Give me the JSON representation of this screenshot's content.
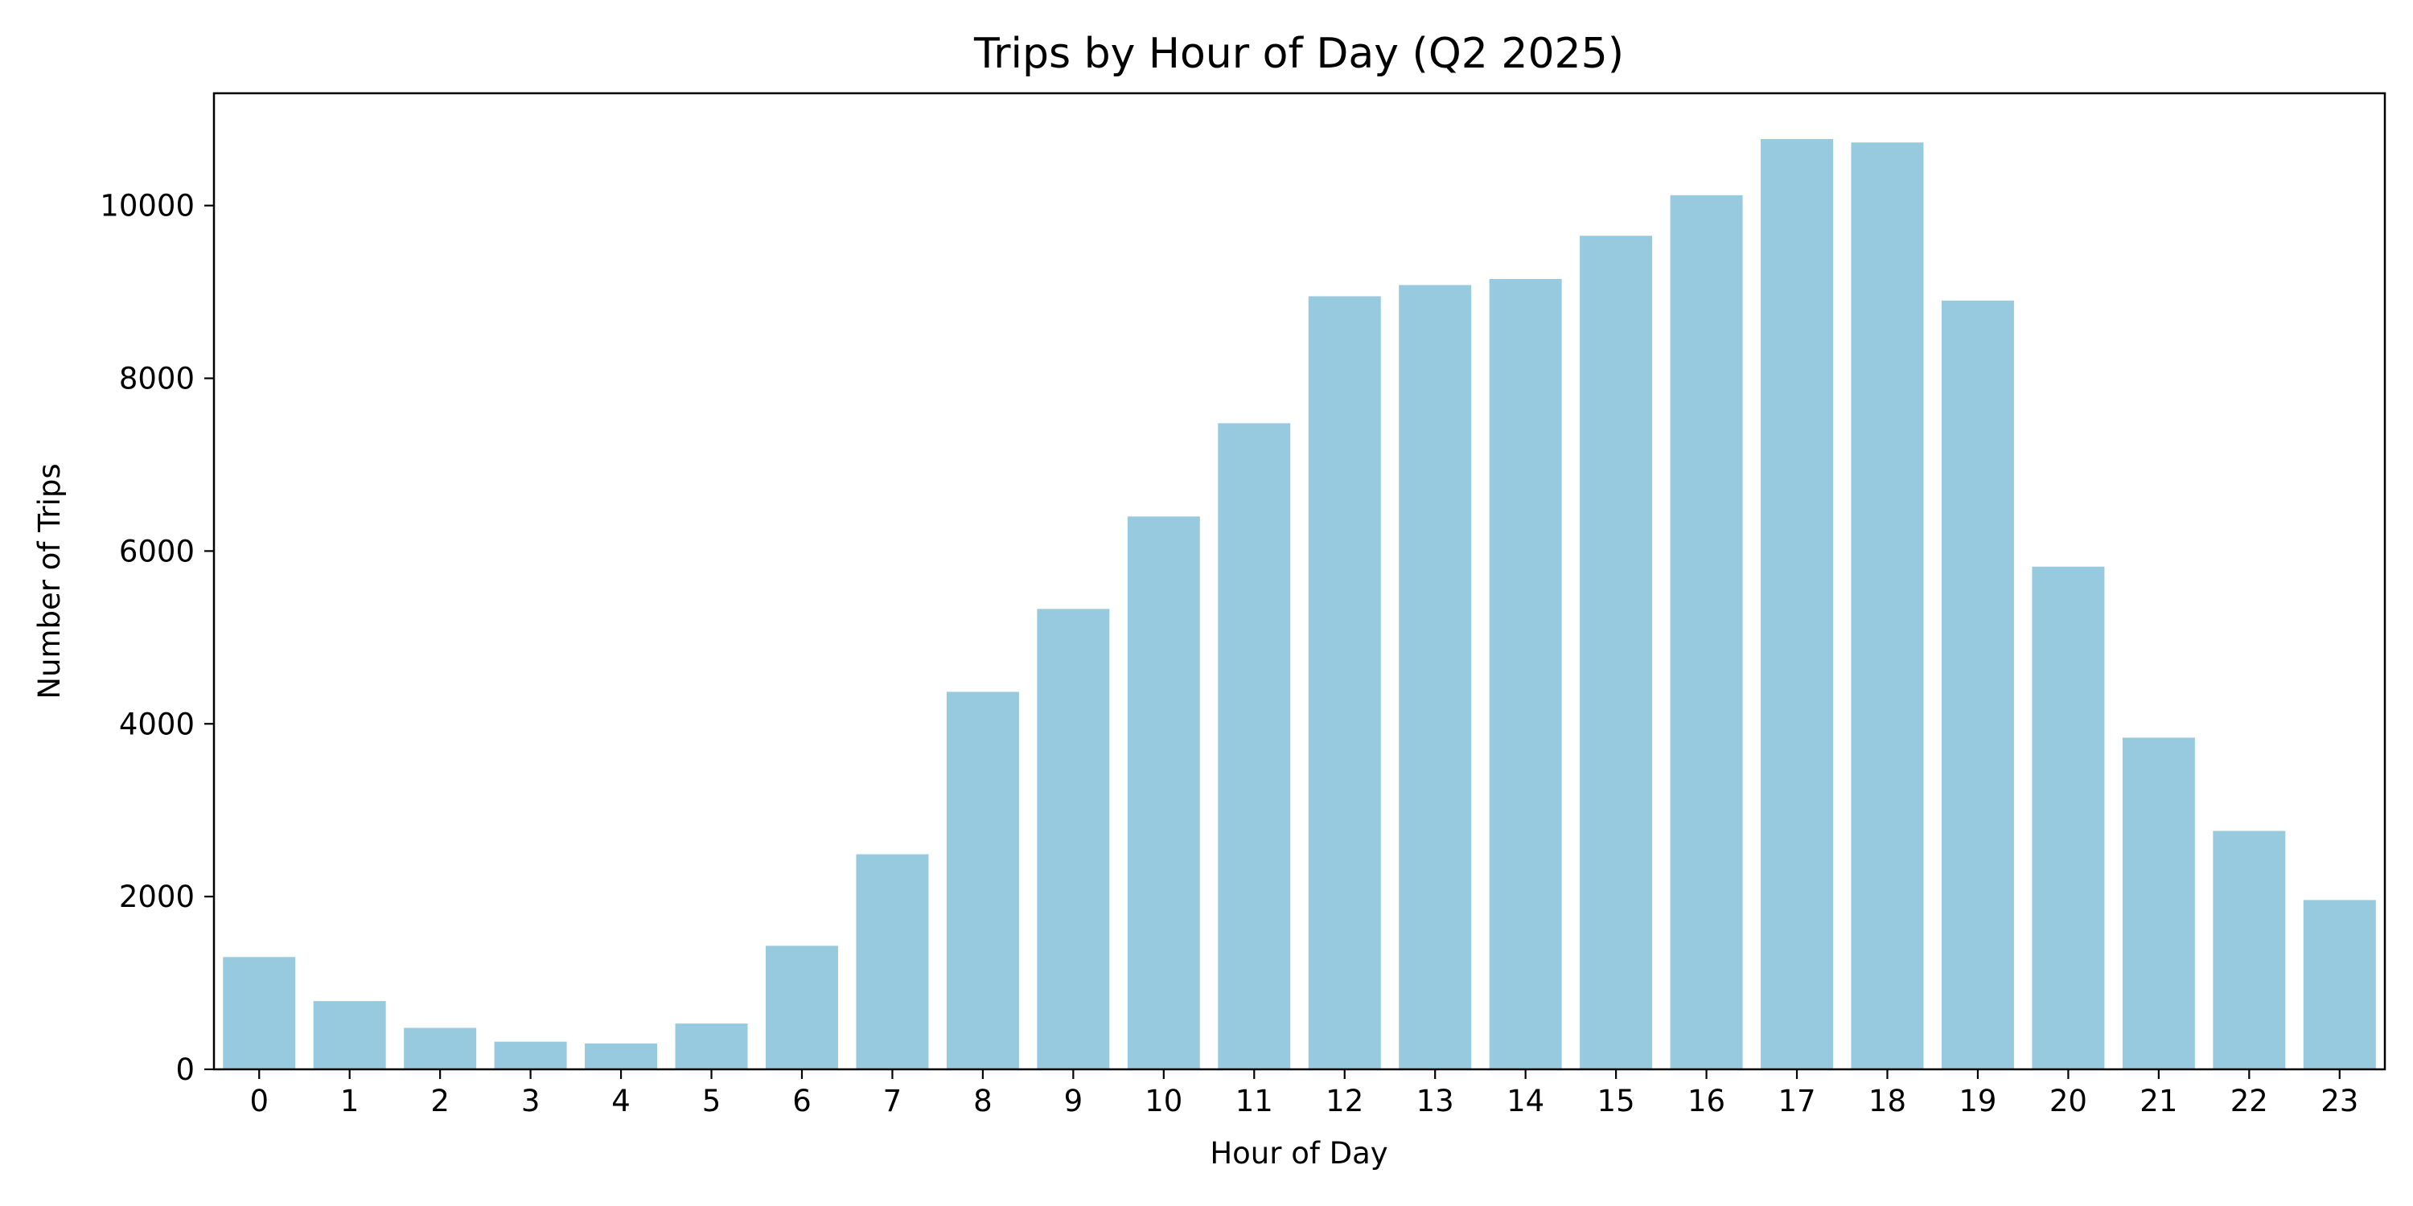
{
  "chart_data": {
    "type": "bar",
    "title": "Trips by Hour of Day (Q2 2025)",
    "xlabel": "Hour of Day",
    "ylabel": "Number of Trips",
    "categories": [
      "0",
      "1",
      "2",
      "3",
      "4",
      "5",
      "6",
      "7",
      "8",
      "9",
      "10",
      "11",
      "12",
      "13",
      "14",
      "15",
      "16",
      "17",
      "18",
      "19",
      "20",
      "21",
      "22",
      "23"
    ],
    "values": [
      1300,
      790,
      480,
      320,
      300,
      530,
      1430,
      2490,
      4370,
      5330,
      6400,
      7480,
      8950,
      9080,
      9150,
      9650,
      10120,
      10770,
      10730,
      8900,
      5820,
      3840,
      2760,
      1960
    ],
    "ylim": [
      0,
      11300
    ],
    "yticks": [
      0,
      2000,
      4000,
      6000,
      8000,
      10000
    ],
    "bar_color": "#97c9df",
    "grid": false,
    "legend": null
  }
}
